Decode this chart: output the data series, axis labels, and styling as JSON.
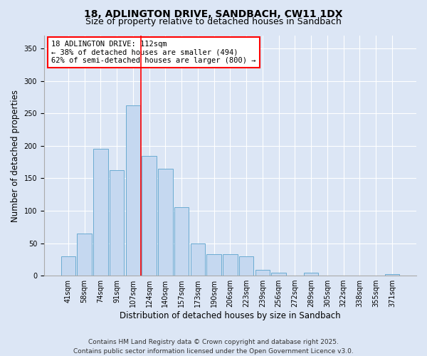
{
  "title_line1": "18, ADLINGTON DRIVE, SANDBACH, CW11 1DX",
  "title_line2": "Size of property relative to detached houses in Sandbach",
  "xlabel": "Distribution of detached houses by size in Sandbach",
  "ylabel": "Number of detached properties",
  "bar_labels": [
    "41sqm",
    "58sqm",
    "74sqm",
    "91sqm",
    "107sqm",
    "124sqm",
    "140sqm",
    "157sqm",
    "173sqm",
    "190sqm",
    "206sqm",
    "223sqm",
    "239sqm",
    "256sqm",
    "272sqm",
    "289sqm",
    "305sqm",
    "322sqm",
    "338sqm",
    "355sqm",
    "371sqm"
  ],
  "bar_values": [
    30,
    65,
    196,
    162,
    262,
    184,
    165,
    105,
    50,
    33,
    33,
    30,
    9,
    5,
    0,
    5,
    0,
    0,
    0,
    0,
    2
  ],
  "bar_color": "#c5d8f0",
  "bar_edge_color": "#6aabd2",
  "vline_x_bar_index": 4,
  "vline_color": "red",
  "annotation_text": "18 ADLINGTON DRIVE: 112sqm\n← 38% of detached houses are smaller (494)\n62% of semi-detached houses are larger (800) →",
  "annotation_box_color": "white",
  "annotation_box_edge": "red",
  "ylim": [
    0,
    370
  ],
  "yticks": [
    0,
    50,
    100,
    150,
    200,
    250,
    300,
    350
  ],
  "bg_color": "#dce6f5",
  "footer": "Contains HM Land Registry data © Crown copyright and database right 2025.\nContains public sector information licensed under the Open Government Licence v3.0.",
  "title_fontsize": 10,
  "subtitle_fontsize": 9,
  "axis_label_fontsize": 8.5,
  "tick_fontsize": 7,
  "annotation_fontsize": 7.5,
  "footer_fontsize": 6.5
}
